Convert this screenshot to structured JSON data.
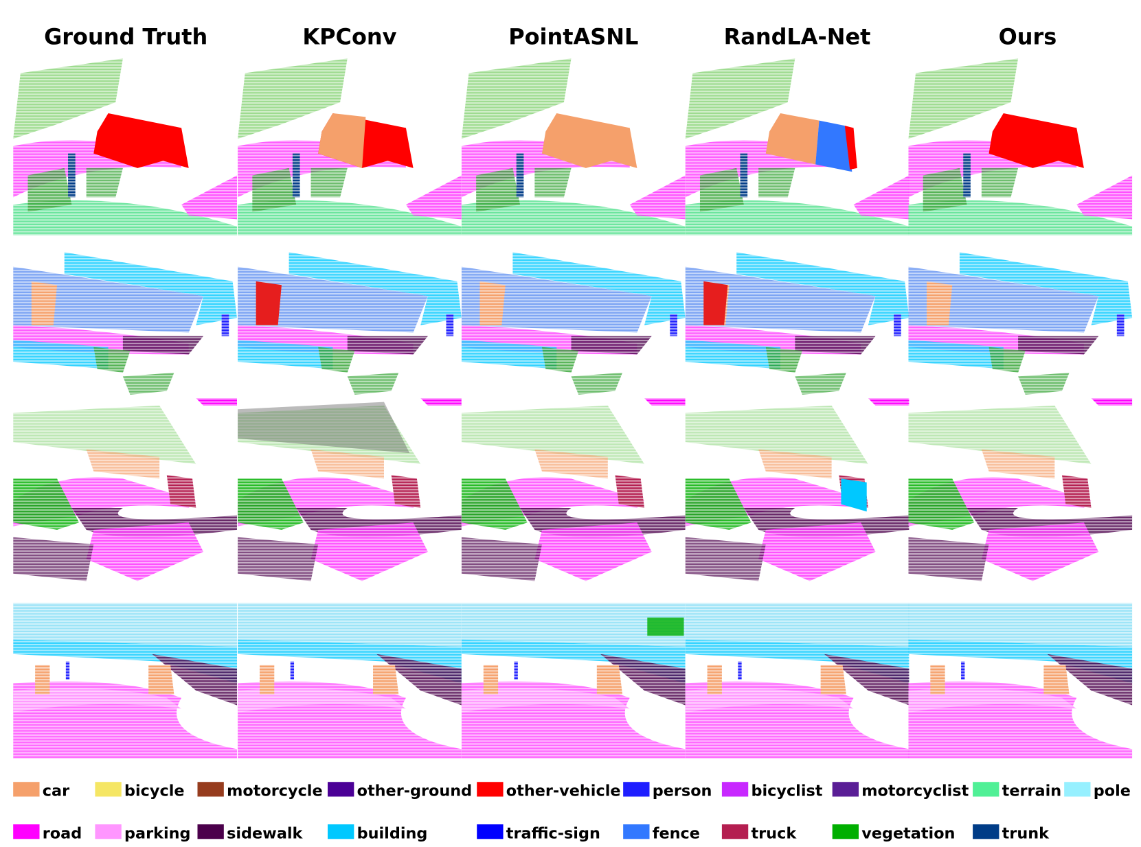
{
  "columns": [
    "Ground Truth",
    "KPConv",
    "PointASNL",
    "RandLA-Net",
    "Ours"
  ],
  "legend": [
    {
      "label": "car",
      "color": "#f5a06b"
    },
    {
      "label": "bicycle",
      "color": "#f5e664"
    },
    {
      "label": "motorcycle",
      "color": "#963c1e"
    },
    {
      "label": "other-ground",
      "color": "#4b0096"
    },
    {
      "label": "other-vehicle",
      "color": "#ff0000"
    },
    {
      "label": "person",
      "color": "#1e1eff"
    },
    {
      "label": "bicyclist",
      "color": "#c828ff"
    },
    {
      "label": "motorcyclist",
      "color": "#5a1e96"
    },
    {
      "label": "terrain",
      "color": "#50f096"
    },
    {
      "label": "pole",
      "color": "#96f0ff"
    },
    {
      "label": "road",
      "color": "#ff00ff"
    },
    {
      "label": "parking",
      "color": "#ff96ff"
    },
    {
      "label": "sidewalk",
      "color": "#4b004b"
    },
    {
      "label": "building",
      "color": "#00c8ff"
    },
    {
      "label": "traffic-sign",
      "color": "#0000ff"
    },
    {
      "label": "fence",
      "color": "#3278ff"
    },
    {
      "label": "truck",
      "color": "#b41e50"
    },
    {
      "label": "vegetation",
      "color": "#00af00"
    },
    {
      "label": "trunk",
      "color": "#003c87"
    }
  ]
}
